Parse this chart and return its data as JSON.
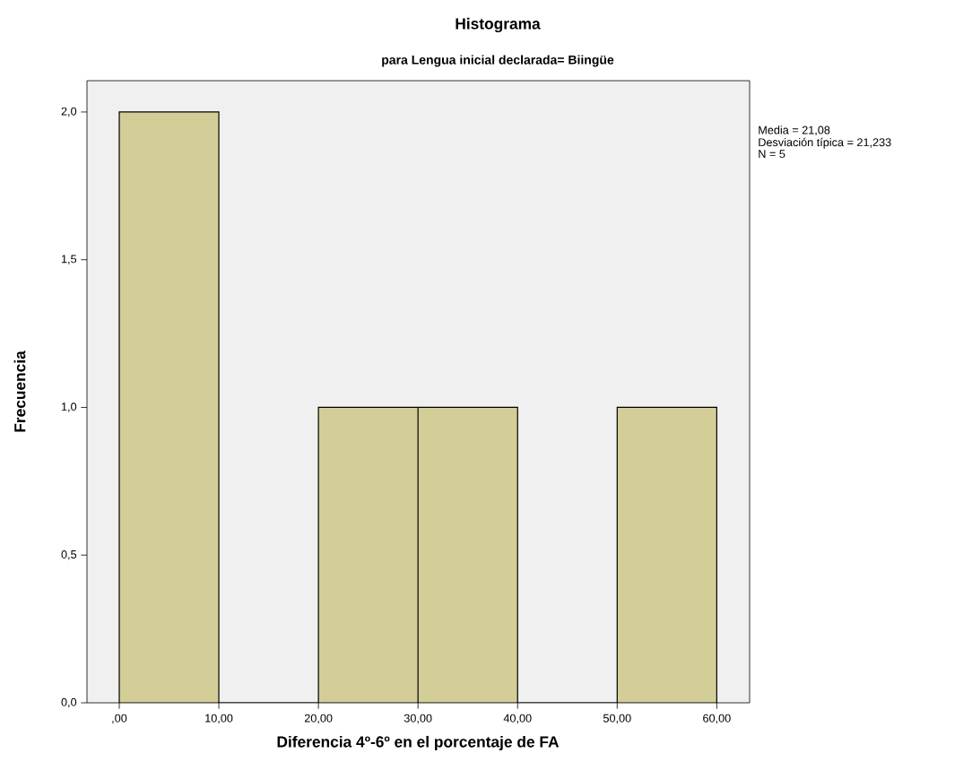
{
  "chart_data": {
    "type": "histogram",
    "title": "Histograma",
    "subtitle": "para Lengua inicial declarada= Biingüe",
    "xlabel": "Diferencia 4º-6º en el porcentaje de FA",
    "ylabel": "Frecuencia",
    "bins": [
      0,
      10,
      20,
      30,
      40,
      50,
      60
    ],
    "values": [
      2,
      0,
      1,
      1,
      0,
      1
    ],
    "color": "#d3ce97",
    "xlim": [
      -3.24,
      63.3
    ],
    "ylim": [
      0,
      2.106
    ],
    "xticks": [
      {
        "value": 0,
        "label": ",00"
      },
      {
        "value": 10,
        "label": "10,00"
      },
      {
        "value": 20,
        "label": "20,00"
      },
      {
        "value": 30,
        "label": "30,00"
      },
      {
        "value": 40,
        "label": "40,00"
      },
      {
        "value": 50,
        "label": "50,00"
      },
      {
        "value": 60,
        "label": "60,00"
      }
    ],
    "yticks": [
      {
        "value": 0,
        "label": "0,0"
      },
      {
        "value": 0.5,
        "label": "0,5"
      },
      {
        "value": 1,
        "label": "1,0"
      },
      {
        "value": 1.5,
        "label": "1,5"
      },
      {
        "value": 2,
        "label": "2,0"
      }
    ],
    "annotations": [
      "Media = 21,08",
      "Desviación típica = 21,233",
      "N = 5"
    ],
    "grid": false
  }
}
